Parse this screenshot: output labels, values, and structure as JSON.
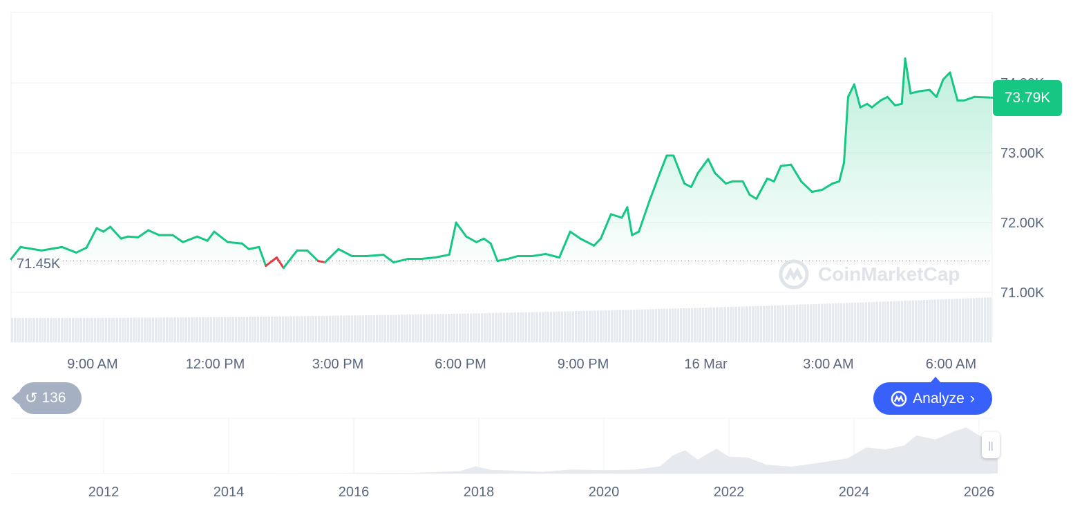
{
  "chart_data": [
    {
      "type": "line",
      "x_ticks": [
        "9:00 AM",
        "12:00 PM",
        "3:00 PM",
        "6:00 PM",
        "9:00 PM",
        "16 Mar",
        "3:00 AM",
        "6:00 AM"
      ],
      "y_ticks": [
        "74.00K",
        "73.00K",
        "72.00K",
        "71.00K"
      ],
      "y_tick_values": [
        74.0,
        73.0,
        72.0,
        71.0
      ],
      "ylim": [
        70.72,
        75.0
      ],
      "baseline": {
        "value": 71.45,
        "label": "71.45K"
      },
      "current_price": {
        "value": 73.79,
        "label": "73.79K"
      },
      "unit": "K",
      "colors": {
        "up": "#16c784",
        "down": "#ea3943",
        "volume": "#e6e9ee"
      },
      "grid": true,
      "series": {
        "time": [
          "07:00",
          "07:14",
          "07:45",
          "08:15",
          "08:36",
          "08:51",
          "09:06",
          "09:16",
          "09:26",
          "09:42",
          "09:52",
          "10:07",
          "10:22",
          "10:38",
          "10:58",
          "11:13",
          "11:34",
          "11:49",
          "11:59",
          "12:19",
          "12:40",
          "12:50",
          "13:05",
          "13:15",
          "13:31",
          "13:41",
          "14:01",
          "14:16",
          "14:32",
          "14:42",
          "15:02",
          "15:22",
          "15:43",
          "16:08",
          "16:23",
          "16:44",
          "17:04",
          "17:24",
          "17:45",
          "17:55",
          "18:10",
          "18:25",
          "18:36",
          "18:46",
          "18:56",
          "19:11",
          "19:26",
          "19:47",
          "20:07",
          "20:27",
          "20:43",
          "20:58",
          "21:18",
          "21:28",
          "21:43",
          "21:59",
          "22:07",
          "22:14",
          "22:24",
          "22:40",
          "22:55",
          "23:05",
          "23:15",
          "23:31",
          "23:41",
          "23:51",
          "00:06",
          "00:16",
          "00:32",
          "00:42",
          "00:57",
          "01:07",
          "01:17",
          "01:33",
          "01:43",
          "01:53",
          "02:08",
          "02:23",
          "02:39",
          "02:54",
          "03:09",
          "03:19",
          "03:26",
          "03:32",
          "03:41",
          "03:50",
          "04:00",
          "04:07",
          "04:20",
          "04:30",
          "04:41",
          "04:51",
          "04:56",
          "05:04",
          "05:16",
          "05:32",
          "05:42",
          "05:52",
          "06:02",
          "06:13",
          "06:23",
          "06:38",
          "07:04"
        ],
        "price_k": [
          71.48,
          71.65,
          71.6,
          71.65,
          71.57,
          71.64,
          71.92,
          71.87,
          71.94,
          71.77,
          71.8,
          71.79,
          71.89,
          71.82,
          71.82,
          71.72,
          71.8,
          71.74,
          71.87,
          71.72,
          71.7,
          71.62,
          71.65,
          71.38,
          71.5,
          71.35,
          71.6,
          71.6,
          71.45,
          71.43,
          71.62,
          71.52,
          71.52,
          71.54,
          71.43,
          71.48,
          71.48,
          71.5,
          71.54,
          72.0,
          71.8,
          71.72,
          71.77,
          71.7,
          71.45,
          71.48,
          71.52,
          71.52,
          71.55,
          71.5,
          71.87,
          71.77,
          71.67,
          71.77,
          72.12,
          72.07,
          72.22,
          71.82,
          71.87,
          72.32,
          72.71,
          72.96,
          72.96,
          72.56,
          72.51,
          72.71,
          72.91,
          72.71,
          72.56,
          72.59,
          72.59,
          72.4,
          72.34,
          72.63,
          72.59,
          72.81,
          72.83,
          72.59,
          72.44,
          72.47,
          72.56,
          72.59,
          72.86,
          73.8,
          73.98,
          73.65,
          73.7,
          73.65,
          73.75,
          73.8,
          73.68,
          73.7,
          74.35,
          73.85,
          73.88,
          73.9,
          73.8,
          74.05,
          74.15,
          73.75,
          73.75,
          73.8,
          73.79
        ]
      }
    },
    {
      "type": "area",
      "x_ticks": [
        "2012",
        "2014",
        "2016",
        "2018",
        "2020",
        "2022",
        "2024",
        "2026"
      ],
      "xlim": [
        2010.6,
        2026.3
      ],
      "series": {
        "year": [
          2010.6,
          2013.0,
          2015.0,
          2017.0,
          2017.7,
          2017.95,
          2018.2,
          2018.6,
          2019.0,
          2019.5,
          2020.0,
          2020.5,
          2020.9,
          2021.1,
          2021.3,
          2021.5,
          2021.8,
          2022.0,
          2022.3,
          2022.6,
          2023.0,
          2023.5,
          2023.9,
          2024.2,
          2024.5,
          2024.8,
          2025.0,
          2025.3,
          2025.6,
          2025.8,
          2026.0,
          2026.3
        ],
        "price_k": [
          0,
          0.5,
          0.3,
          2,
          6,
          18,
          9,
          7,
          4,
          10,
          8,
          10,
          18,
          45,
          58,
          35,
          62,
          42,
          40,
          22,
          17,
          28,
          38,
          65,
          60,
          70,
          95,
          85,
          105,
          115,
          95,
          73
        ]
      }
    }
  ],
  "history_badge": {
    "count": "136",
    "icon": "history-icon"
  },
  "analyze_button": {
    "label": "Analyze",
    "icon": "coinmarketcap-icon"
  },
  "watermark": "CoinMarketCap"
}
